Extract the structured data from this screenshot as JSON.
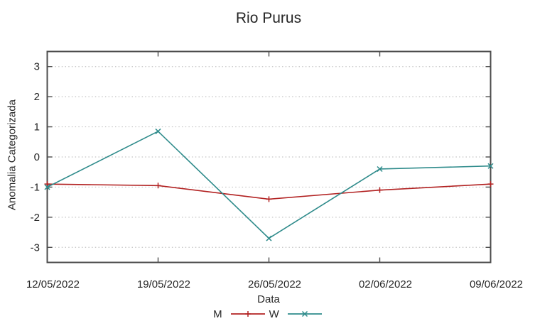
{
  "chart_data": {
    "type": "line",
    "title": "Rio Purus",
    "xlabel": "Data",
    "ylabel": "Anomalia Categorizada",
    "categories": [
      "12/05/2022",
      "19/05/2022",
      "26/05/2022",
      "02/06/2022",
      "09/06/2022"
    ],
    "series": [
      {
        "name": "M",
        "color": "#b22222",
        "marker": "plus",
        "values": [
          -0.9,
          -0.95,
          -1.4,
          -1.1,
          -0.9
        ]
      },
      {
        "name": "W",
        "color": "#2e8b8b",
        "marker": "cross",
        "values": [
          -1.0,
          0.85,
          -2.7,
          -0.4,
          -0.3
        ]
      }
    ],
    "ylim": [
      -3.5,
      3.5
    ],
    "yticks": [
      -3,
      -2,
      -1,
      0,
      1,
      2,
      3
    ],
    "grid": "horizontal-dotted",
    "legend_position": "bottom-center",
    "colors": {
      "axis": "#4d4d4d",
      "grid": "#c3c3c3",
      "text": "#262626",
      "background": "#ffffff"
    }
  }
}
